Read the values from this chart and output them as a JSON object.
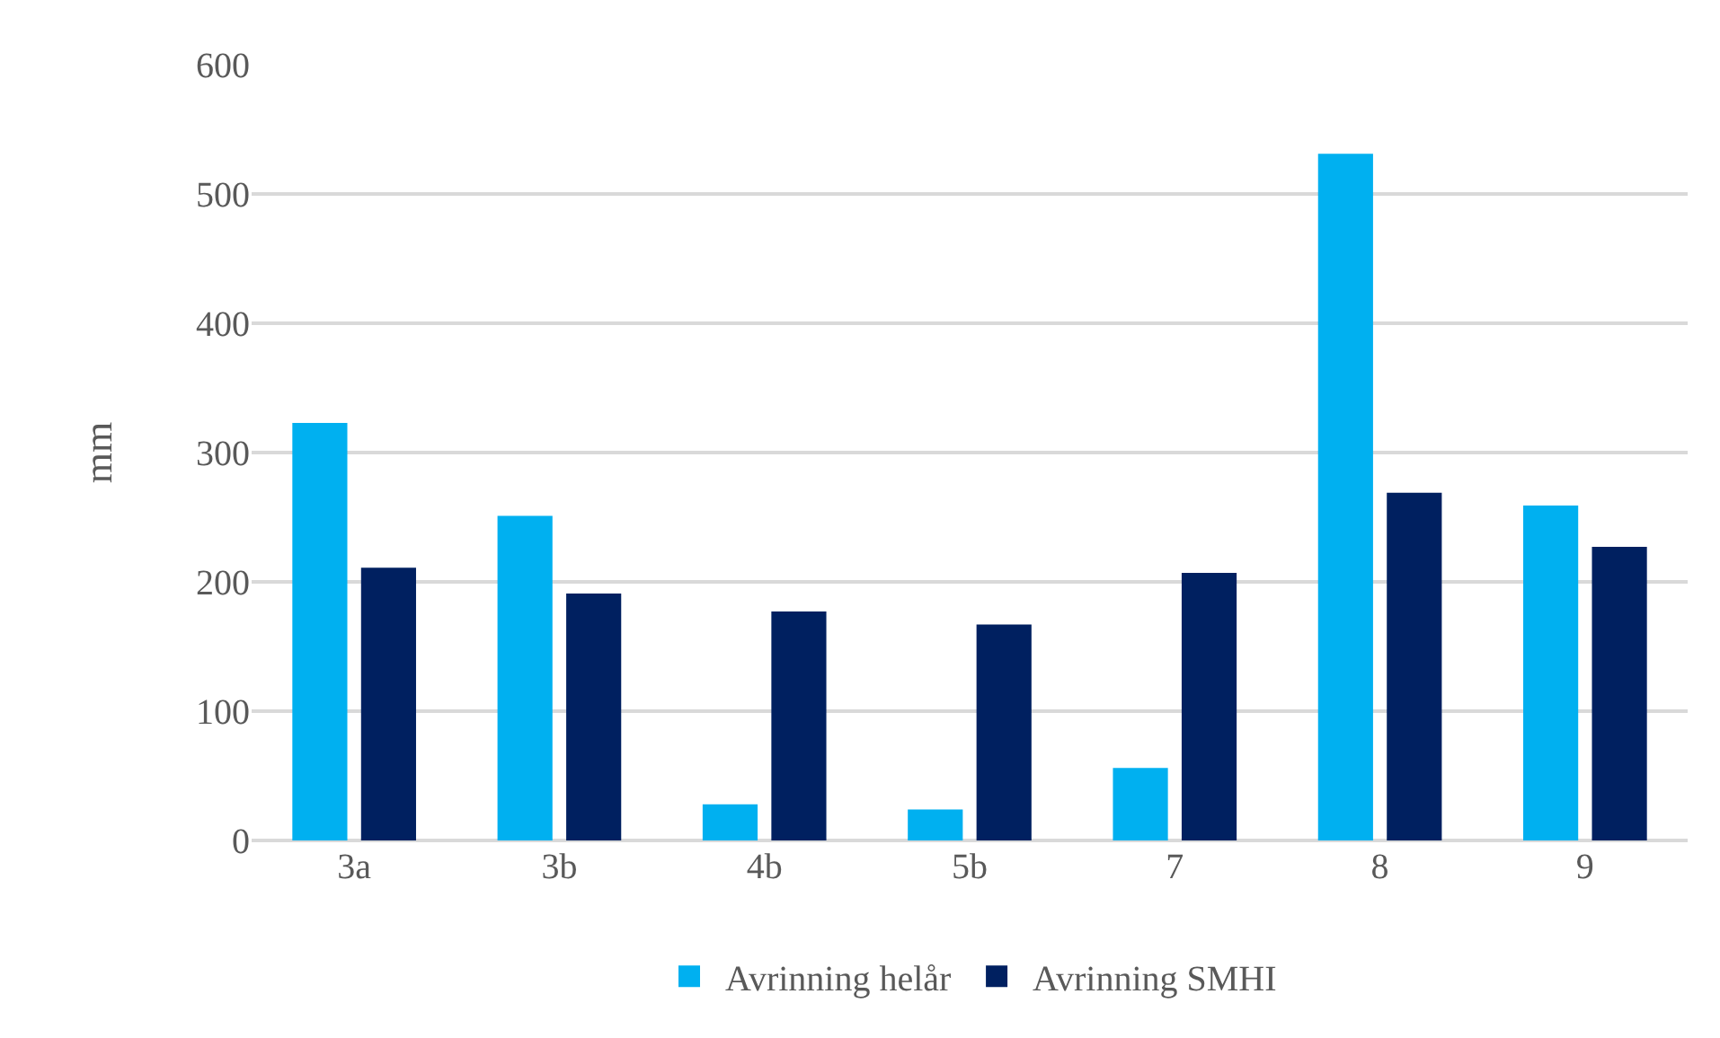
{
  "chart_data": {
    "type": "bar",
    "ylabel": "mm",
    "categories": [
      "3a",
      "3b",
      "4b",
      "5b",
      "7",
      "8",
      "9"
    ],
    "series": [
      {
        "name": "Avrinning helår",
        "color": "#00b0f0",
        "values": [
          323,
          251,
          28,
          24,
          56,
          531,
          259
        ]
      },
      {
        "name": "Avrinning SMHI",
        "color": "#002060",
        "values": [
          211,
          191,
          177,
          167,
          207,
          269,
          227
        ]
      }
    ],
    "ylim": [
      0,
      600
    ],
    "yticks": [
      0,
      100,
      200,
      300,
      400,
      500,
      600
    ],
    "grid": "y",
    "legend": "bottom"
  }
}
